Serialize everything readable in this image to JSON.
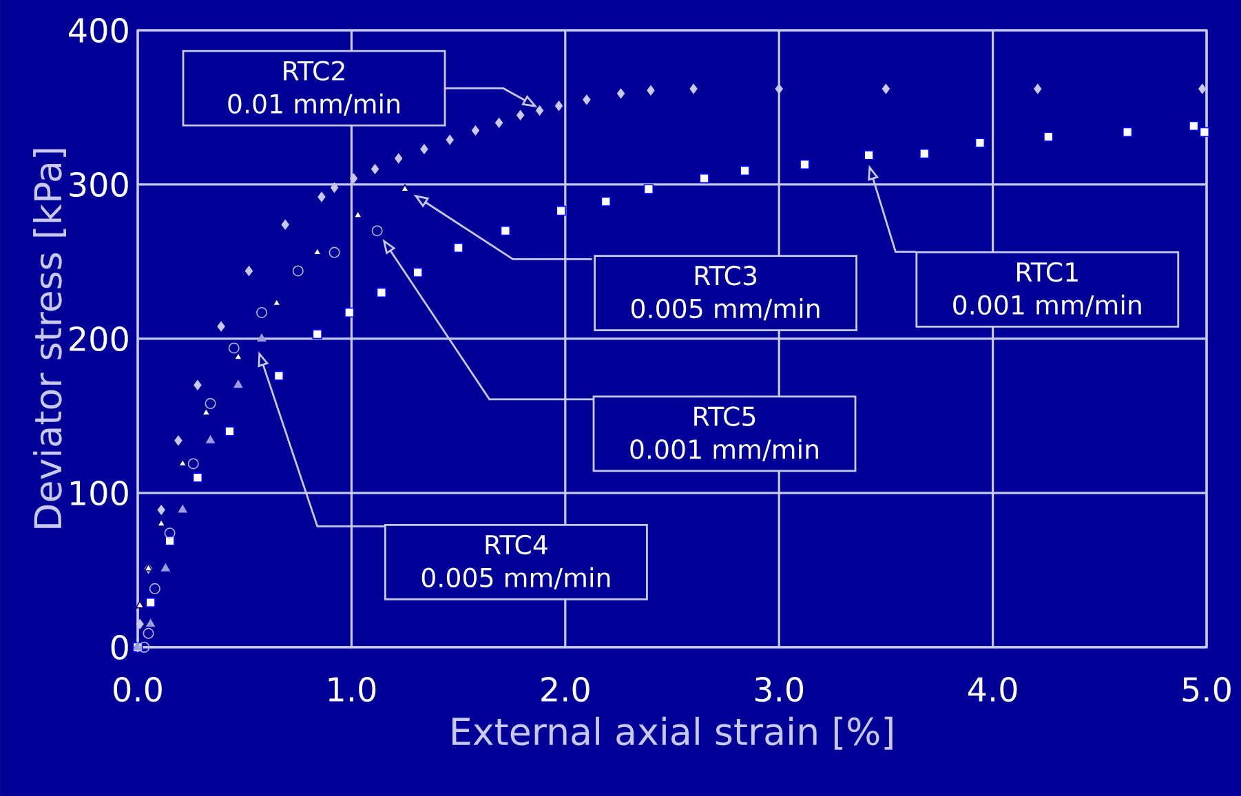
{
  "chart_data": {
    "type": "scatter",
    "xlabel": "External axial strain [%]",
    "ylabel": "Deviator stress [kPa]",
    "xlim": [
      0,
      5
    ],
    "ylim": [
      0,
      400
    ],
    "xticks": [
      {
        "value": 0,
        "label": "0.0"
      },
      {
        "value": 1,
        "label": "1.0"
      },
      {
        "value": 2,
        "label": "2.0"
      },
      {
        "value": 3,
        "label": "3.0"
      },
      {
        "value": 4,
        "label": "4.0"
      },
      {
        "value": 5,
        "label": "5.0"
      }
    ],
    "yticks": [
      0,
      100,
      200,
      300,
      400
    ],
    "grid": true,
    "series": [
      {
        "color": "#ffffff",
        "marker": "square",
        "x": [
          0,
          0.06,
          0.15,
          0.28,
          0.43,
          0.66,
          0.84,
          0.99,
          1.14,
          1.31,
          1.5,
          1.72,
          1.98,
          2.19,
          2.39,
          2.65,
          2.84,
          3.12,
          3.42,
          3.68,
          3.94,
          4.26,
          4.63,
          4.94,
          4.99
        ],
        "values": [
          0,
          29,
          69,
          110,
          140,
          176,
          203,
          217,
          230,
          243,
          259,
          270,
          283,
          289,
          297,
          304,
          309,
          313,
          319,
          320,
          327,
          331,
          334,
          338,
          334
        ]
      },
      {
        "color": "#c8c8f0",
        "marker": "diamond",
        "x": [
          0,
          0.01,
          0.05,
          0.11,
          0.19,
          0.28,
          0.39,
          0.52,
          0.69,
          0.86,
          0.92,
          1.01,
          1.11,
          1.22,
          1.34,
          1.46,
          1.58,
          1.69,
          1.79,
          1.88,
          1.97,
          2.1,
          2.26,
          2.4,
          2.6,
          3.0,
          3.5,
          4.21,
          4.98
        ],
        "values": [
          0,
          15,
          51,
          89,
          134,
          170,
          208,
          244,
          274,
          292,
          298,
          304,
          310,
          317,
          323,
          329,
          335,
          340,
          345,
          348,
          351,
          355,
          359,
          361,
          362,
          362,
          362,
          362,
          362
        ]
      },
      {
        "color": "#ffffff",
        "marker": "triangle",
        "x": [
          0,
          0.01,
          0.05,
          0.11,
          0.21,
          0.32,
          0.47,
          0.65,
          0.84,
          1.03,
          1.25
        ],
        "values": [
          0,
          27,
          51,
          80,
          119,
          152,
          188,
          223,
          256,
          280,
          297
        ]
      },
      {
        "color": "#9c9ce0",
        "marker": "triangle",
        "x": [
          0,
          0.06,
          0.13,
          0.21,
          0.34,
          0.47,
          0.58
        ],
        "values": [
          0,
          15,
          51,
          89,
          134,
          170,
          200
        ]
      },
      {
        "color": "#b4b4e6",
        "marker": "circle",
        "x": [
          0.03,
          0.05,
          0.08,
          0.15,
          0.26,
          0.34,
          0.45,
          0.58,
          0.75,
          0.92,
          1.12
        ],
        "values": [
          0,
          9,
          38,
          74,
          119,
          158,
          194,
          217,
          244,
          256,
          270
        ]
      }
    ],
    "annotations": [
      "RTC1",
      "0.001 mm/min",
      "RTC2",
      "0.01 mm/min",
      "RTC3",
      "0.005 mm/min",
      "RTC4",
      "0.005 mm/min",
      "RTC5",
      "0.001 mm/min"
    ]
  }
}
